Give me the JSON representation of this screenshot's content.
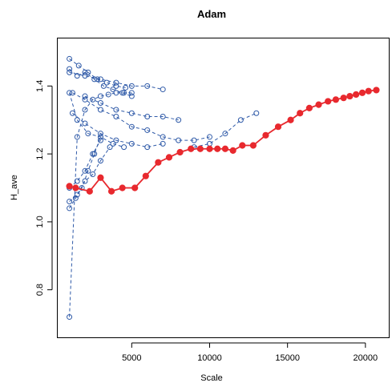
{
  "chart_data": {
    "type": "line",
    "title": "Adam",
    "xlabel": "Scale",
    "ylabel": "H_ave",
    "xlim": [
      250,
      21500
    ],
    "ylim": [
      0.66,
      1.54
    ],
    "x_ticks": [
      5000,
      10000,
      15000,
      20000
    ],
    "x_tick_labels": [
      "5000",
      "10000",
      "15000",
      "20000"
    ],
    "y_ticks": [
      0.8,
      1.0,
      1.2,
      1.4
    ],
    "y_tick_labels": [
      "0.8",
      "1.0",
      "1.2",
      "1.4"
    ],
    "grid": false,
    "legend": "none",
    "colors": {
      "background_series": "#2f5aa8",
      "highlight_series": "#e8292e"
    },
    "background_series_style": "dashed line, open circle markers",
    "highlight_series_style": "solid line, filled circle markers",
    "highlight_series": {
      "x": [
        1000,
        1400,
        2300,
        3000,
        3700,
        4400,
        5200,
        5900,
        6700,
        7400,
        8100,
        8800,
        9400,
        10000,
        10500,
        11000,
        11500,
        12100,
        12800,
        13600,
        14400,
        15200,
        15800,
        16400,
        17000,
        17600,
        18100,
        18600,
        19000,
        19400,
        19800,
        20200,
        20700
      ],
      "y": [
        1.105,
        1.1,
        1.09,
        1.13,
        1.09,
        1.1,
        1.1,
        1.135,
        1.175,
        1.19,
        1.205,
        1.215,
        1.215,
        1.215,
        1.215,
        1.215,
        1.21,
        1.225,
        1.225,
        1.255,
        1.28,
        1.3,
        1.32,
        1.335,
        1.345,
        1.355,
        1.36,
        1.365,
        1.37,
        1.375,
        1.38,
        1.385,
        1.388
      ]
    },
    "background_series": [
      {
        "x": [
          1000,
          1500,
          2000,
          2500,
          3000,
          3500,
          4000,
          4500,
          5000
        ],
        "y": [
          0.72,
          1.25,
          1.33,
          1.36,
          1.37,
          1.375,
          1.38,
          1.38,
          1.38
        ]
      },
      {
        "x": [
          1000,
          1600,
          2200,
          2800,
          3400,
          4000,
          4600
        ],
        "y": [
          1.48,
          1.46,
          1.44,
          1.42,
          1.41,
          1.4,
          1.395
        ]
      },
      {
        "x": [
          1000,
          1400,
          1800,
          2200,
          2600,
          3000
        ],
        "y": [
          1.04,
          1.07,
          1.1,
          1.15,
          1.2,
          1.25
        ]
      },
      {
        "x": [
          1000,
          1500,
          2000,
          2600,
          3200,
          3800,
          4400,
          5000
        ],
        "y": [
          1.45,
          1.43,
          1.44,
          1.42,
          1.4,
          1.39,
          1.38,
          1.37
        ]
      },
      {
        "x": [
          1000,
          1500,
          2000,
          2500,
          3000
        ],
        "y": [
          1.1,
          1.12,
          1.15,
          1.2,
          1.24
        ]
      },
      {
        "x": [
          1000,
          1500,
          2200,
          3000,
          3800,
          4500
        ],
        "y": [
          1.38,
          1.3,
          1.26,
          1.25,
          1.23,
          1.22
        ]
      },
      {
        "x": [
          1000,
          1500,
          2000,
          2500,
          3000,
          3600
        ],
        "y": [
          1.06,
          1.08,
          1.12,
          1.14,
          1.18,
          1.22
        ]
      },
      {
        "x": [
          1200,
          2000,
          3000,
          4000,
          5000,
          6000,
          7000,
          8000,
          9000,
          10000
        ],
        "y": [
          1.38,
          1.36,
          1.33,
          1.31,
          1.28,
          1.27,
          1.25,
          1.24,
          1.24,
          1.25
        ]
      },
      {
        "x": [
          1200,
          2000,
          3000,
          4000,
          5000,
          6000,
          7000
        ],
        "y": [
          1.32,
          1.29,
          1.26,
          1.24,
          1.23,
          1.22,
          1.23
        ]
      },
      {
        "x": [
          9000,
          10000,
          11000,
          12000,
          13000
        ],
        "y": [
          1.22,
          1.23,
          1.26,
          1.3,
          1.32
        ]
      },
      {
        "x": [
          1000,
          2000,
          3000,
          4000,
          5000,
          6000,
          7000
        ],
        "y": [
          1.44,
          1.43,
          1.42,
          1.41,
          1.4,
          1.4,
          1.39
        ]
      },
      {
        "x": [
          2000,
          3000,
          4000,
          5000,
          6000,
          7000,
          8000
        ],
        "y": [
          1.37,
          1.35,
          1.33,
          1.32,
          1.31,
          1.31,
          1.3
        ]
      }
    ]
  }
}
